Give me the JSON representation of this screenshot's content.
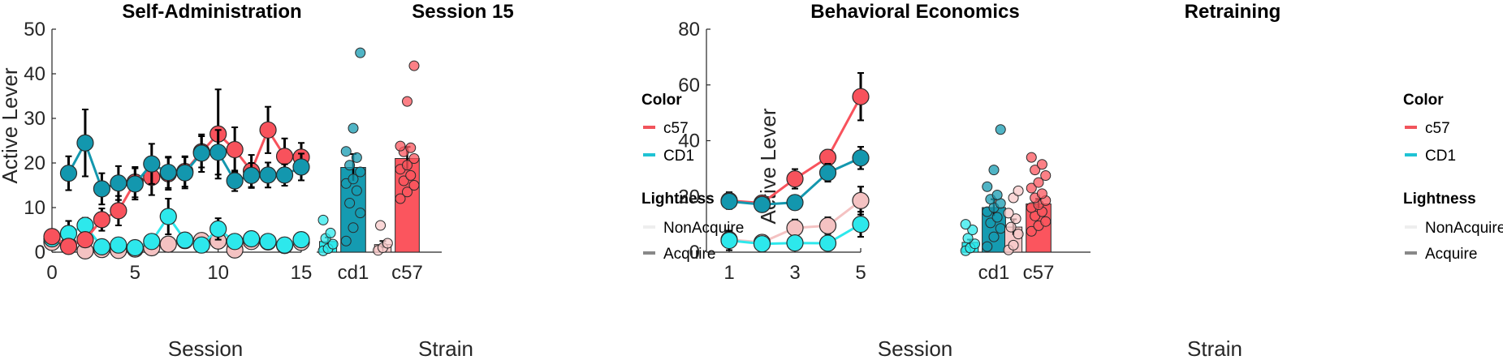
{
  "colors": {
    "c57_acq": "#F8525C",
    "c57_non": "#F4C2C2",
    "cd1_acq": "#1397AE",
    "cd1_non": "#2DE8EC",
    "bar_c57_acq": "#FB555E",
    "bar_c57_non": "#F8CACA",
    "bar_cd1_acq": "#159BB1",
    "bar_cd1_non": "#2DE9EC",
    "leg_c57": "#F1545C",
    "leg_cd1": "#1FC3D4",
    "leg_non": "#EEEEEE",
    "leg_acq": "#888888"
  },
  "legends": [
    {
      "color_title": "Color",
      "color_items": [
        {
          "label": "c57",
          "color_key": "leg_c57"
        },
        {
          "label": "CD1",
          "color_key": "leg_cd1"
        }
      ],
      "light_title": "Lightness",
      "light_items": [
        {
          "label": "NonAcquire",
          "color_key": "leg_non"
        },
        {
          "label": "Acquire",
          "color_key": "leg_acq"
        }
      ]
    },
    {
      "color_title": "Color",
      "color_items": [
        {
          "label": "c57",
          "color_key": "leg_c57"
        },
        {
          "label": "CD1",
          "color_key": "leg_cd1"
        }
      ],
      "light_title": "Lightness",
      "light_items": [
        {
          "label": "NonAcquire",
          "color_key": "leg_non"
        },
        {
          "label": "Acquire",
          "color_key": "leg_acq"
        }
      ]
    }
  ],
  "chart_data": [
    {
      "id": "selfadmin",
      "type": "line",
      "title": "Self-Administration",
      "xlabel": "Session",
      "ylabel": "Active Lever",
      "xlim": [
        0,
        15
      ],
      "ylim": [
        0,
        50
      ],
      "xticks": [
        0,
        5,
        10,
        15
      ],
      "yticks": [
        0,
        10,
        20,
        30,
        40,
        50
      ],
      "series": [
        {
          "strain": "c57",
          "group": "NonAcquire",
          "color_key": "c57_non",
          "x": [
            0,
            1,
            2,
            3,
            4,
            5,
            6,
            7,
            8,
            9,
            10,
            11,
            12,
            13,
            14,
            15
          ],
          "y": [
            2.2,
            1.6,
            0.3,
            0.6,
            0.4,
            0.7,
            1.0,
            1.8,
            2.6,
            2.6,
            2.5,
            0.5,
            2.4,
            2.3,
            1.5,
            2.2
          ],
          "err": [
            0.4,
            0.5,
            0.3,
            0.3,
            0.3,
            0.3,
            0.4,
            0.6,
            0.6,
            0.6,
            0.6,
            0.3,
            0.5,
            0.5,
            0.4,
            0.5
          ]
        },
        {
          "strain": "CD1",
          "group": "NonAcquire",
          "color_key": "cd1_non",
          "x": [
            0,
            1,
            2,
            3,
            4,
            5,
            6,
            7,
            8,
            9,
            10,
            11,
            12,
            13,
            14,
            15
          ],
          "y": [
            3.0,
            4.2,
            6.0,
            1.2,
            1.6,
            1.0,
            2.4,
            8.0,
            2.7,
            1.6,
            5.2,
            2.4,
            3.0,
            2.4,
            1.6,
            2.8
          ],
          "err": [
            0.8,
            2.8,
            1.7,
            0.6,
            0.9,
            0.5,
            1.0,
            4.0,
            1.2,
            0.8,
            2.4,
            0.9,
            1.0,
            0.8,
            0.5,
            1.0
          ]
        },
        {
          "strain": "c57",
          "group": "Acquire",
          "color_key": "c57_acq",
          "x": [
            0,
            1,
            2,
            3,
            4,
            5,
            6,
            7,
            8,
            9,
            10,
            11,
            12,
            13,
            14,
            15
          ],
          "y": [
            3.5,
            1.3,
            2.8,
            7.3,
            9.3,
            15.7,
            16.8,
            17.6,
            18.1,
            22.5,
            26.5,
            23.0,
            18.2,
            27.4,
            21.5,
            21.3
          ],
          "err": [
            1.5,
            1.0,
            1.5,
            2.5,
            3.3,
            3.4,
            4.0,
            3.6,
            3.4,
            3.5,
            10.0,
            5.0,
            3.6,
            5.2,
            4.0,
            3.2
          ]
        },
        {
          "strain": "CD1",
          "group": "Acquire",
          "color_key": "cd1_acq",
          "x": [
            0,
            1,
            2,
            3,
            4,
            5,
            6,
            7,
            8,
            9,
            10,
            11,
            12,
            13,
            14,
            15
          ],
          "y": [
            null,
            17.7,
            24.5,
            14.2,
            15.5,
            15.3,
            19.8,
            17.9,
            17.8,
            22.2,
            22.4,
            16.0,
            17.2,
            17.3,
            17.3,
            19.1
          ],
          "err": [
            null,
            3.8,
            7.5,
            3.5,
            3.8,
            3.5,
            4.5,
            3.5,
            3.5,
            4.2,
            5.0,
            2.3,
            2.8,
            2.8,
            2.4,
            3.0
          ]
        }
      ]
    },
    {
      "id": "session15",
      "type": "bar",
      "title": "Session 15",
      "xlabel": "Strain",
      "categories": [
        "cd1",
        "c57"
      ],
      "ylim": [
        0,
        50
      ],
      "bars": [
        {
          "category": "cd1",
          "group": "NonAcquire",
          "color_key": "bar_cd1_non",
          "value": 2.4,
          "err": 0.9,
          "points": [
            0.3,
            0.8,
            1.8,
            3.1,
            4.3,
            7.2
          ]
        },
        {
          "category": "cd1",
          "group": "Acquire",
          "color_key": "bar_cd1_acq",
          "value": 19.0,
          "err": 3.0,
          "points": [
            2.5,
            5.5,
            8.8,
            11.0,
            13.8,
            15.4,
            16.4,
            18.0,
            19.5,
            21.2,
            22.6,
            27.8,
            44.7
          ]
        },
        {
          "category": "c57",
          "group": "NonAcquire",
          "color_key": "bar_c57_non",
          "value": 1.7,
          "err": 0.8,
          "points": [
            0.4,
            1.0,
            2.0,
            6.0
          ]
        },
        {
          "category": "c57",
          "group": "Acquire",
          "color_key": "bar_c57_acq",
          "value": 21.0,
          "err": 2.6,
          "points": [
            12.0,
            13.5,
            15.0,
            16.0,
            17.2,
            18.6,
            19.5,
            21.0,
            22.5,
            23.4,
            23.8,
            33.8,
            41.8
          ]
        }
      ]
    },
    {
      "id": "behecon",
      "type": "line",
      "title": "Behavioral Economics",
      "xlabel": "Session",
      "ylabel": "Active Lever",
      "xlim": [
        1,
        5
      ],
      "ylim": [
        0,
        80
      ],
      "xticks": [
        1,
        3,
        5
      ],
      "yticks": [
        0,
        20,
        40,
        60,
        80
      ],
      "series": [
        {
          "strain": "c57",
          "group": "NonAcquire",
          "color_key": "c57_non",
          "x": [
            1,
            2,
            3,
            4,
            5
          ],
          "y": [
            4.5,
            3.5,
            8.7,
            9.5,
            18.5
          ],
          "err": [
            2.5,
            1.2,
            3.0,
            3.0,
            5.0
          ]
        },
        {
          "strain": "CD1",
          "group": "NonAcquire",
          "color_key": "cd1_non",
          "x": [
            1,
            2,
            3,
            4,
            5
          ],
          "y": [
            4.2,
            3.0,
            3.3,
            3.2,
            10.0
          ],
          "err": [
            3.5,
            1.0,
            1.5,
            1.5,
            4.5
          ]
        },
        {
          "strain": "c57",
          "group": "Acquire",
          "color_key": "c57_acq",
          "x": [
            1,
            2,
            3,
            4,
            5
          ],
          "y": [
            18.5,
            17.6,
            26.3,
            34.0,
            55.8
          ],
          "err": [
            3.0,
            1.5,
            3.5,
            2.7,
            8.5
          ]
        },
        {
          "strain": "CD1",
          "group": "Acquire",
          "color_key": "cd1_acq",
          "x": [
            1,
            2,
            3,
            4,
            5
          ],
          "y": [
            18.2,
            17.1,
            17.8,
            28.5,
            33.8
          ],
          "err": [
            2.5,
            1.0,
            1.8,
            3.2,
            4.0
          ]
        }
      ]
    },
    {
      "id": "retraining",
      "type": "bar",
      "title": "Retraining",
      "xlabel": "Strain",
      "categories": [
        "cd1",
        "c57"
      ],
      "ylim": [
        0,
        80
      ],
      "bars": [
        {
          "category": "cd1",
          "group": "NonAcquire",
          "color_key": "bar_cd1_non",
          "value": 3.5,
          "err": 1.0,
          "points": [
            0.5,
            1.5,
            3.0,
            5.0,
            8.0,
            10.0
          ]
        },
        {
          "category": "cd1",
          "group": "Acquire",
          "color_key": "bar_cd1_acq",
          "value": 16.0,
          "err": 3.0,
          "points": [
            2.0,
            5.5,
            8.5,
            10.5,
            12.5,
            14.5,
            16.0,
            17.5,
            19.0,
            20.5,
            23.5,
            29.5,
            44.0
          ]
        },
        {
          "category": "c57",
          "group": "NonAcquire",
          "color_key": "bar_c57_non",
          "value": 9.0,
          "err": 2.8,
          "points": [
            0.8,
            2.5,
            6.5,
            9.0,
            12.0,
            14.0,
            19.5,
            22.0
          ]
        },
        {
          "category": "c57",
          "group": "Acquire",
          "color_key": "bar_c57_acq",
          "value": 17.3,
          "err": 1.8,
          "points": [
            7.5,
            9.5,
            11.0,
            13.0,
            14.5,
            16.0,
            17.0,
            18.5,
            19.5,
            21.0,
            23.0,
            25.0,
            27.5,
            29.5,
            31.5,
            34.0
          ]
        }
      ]
    }
  ]
}
